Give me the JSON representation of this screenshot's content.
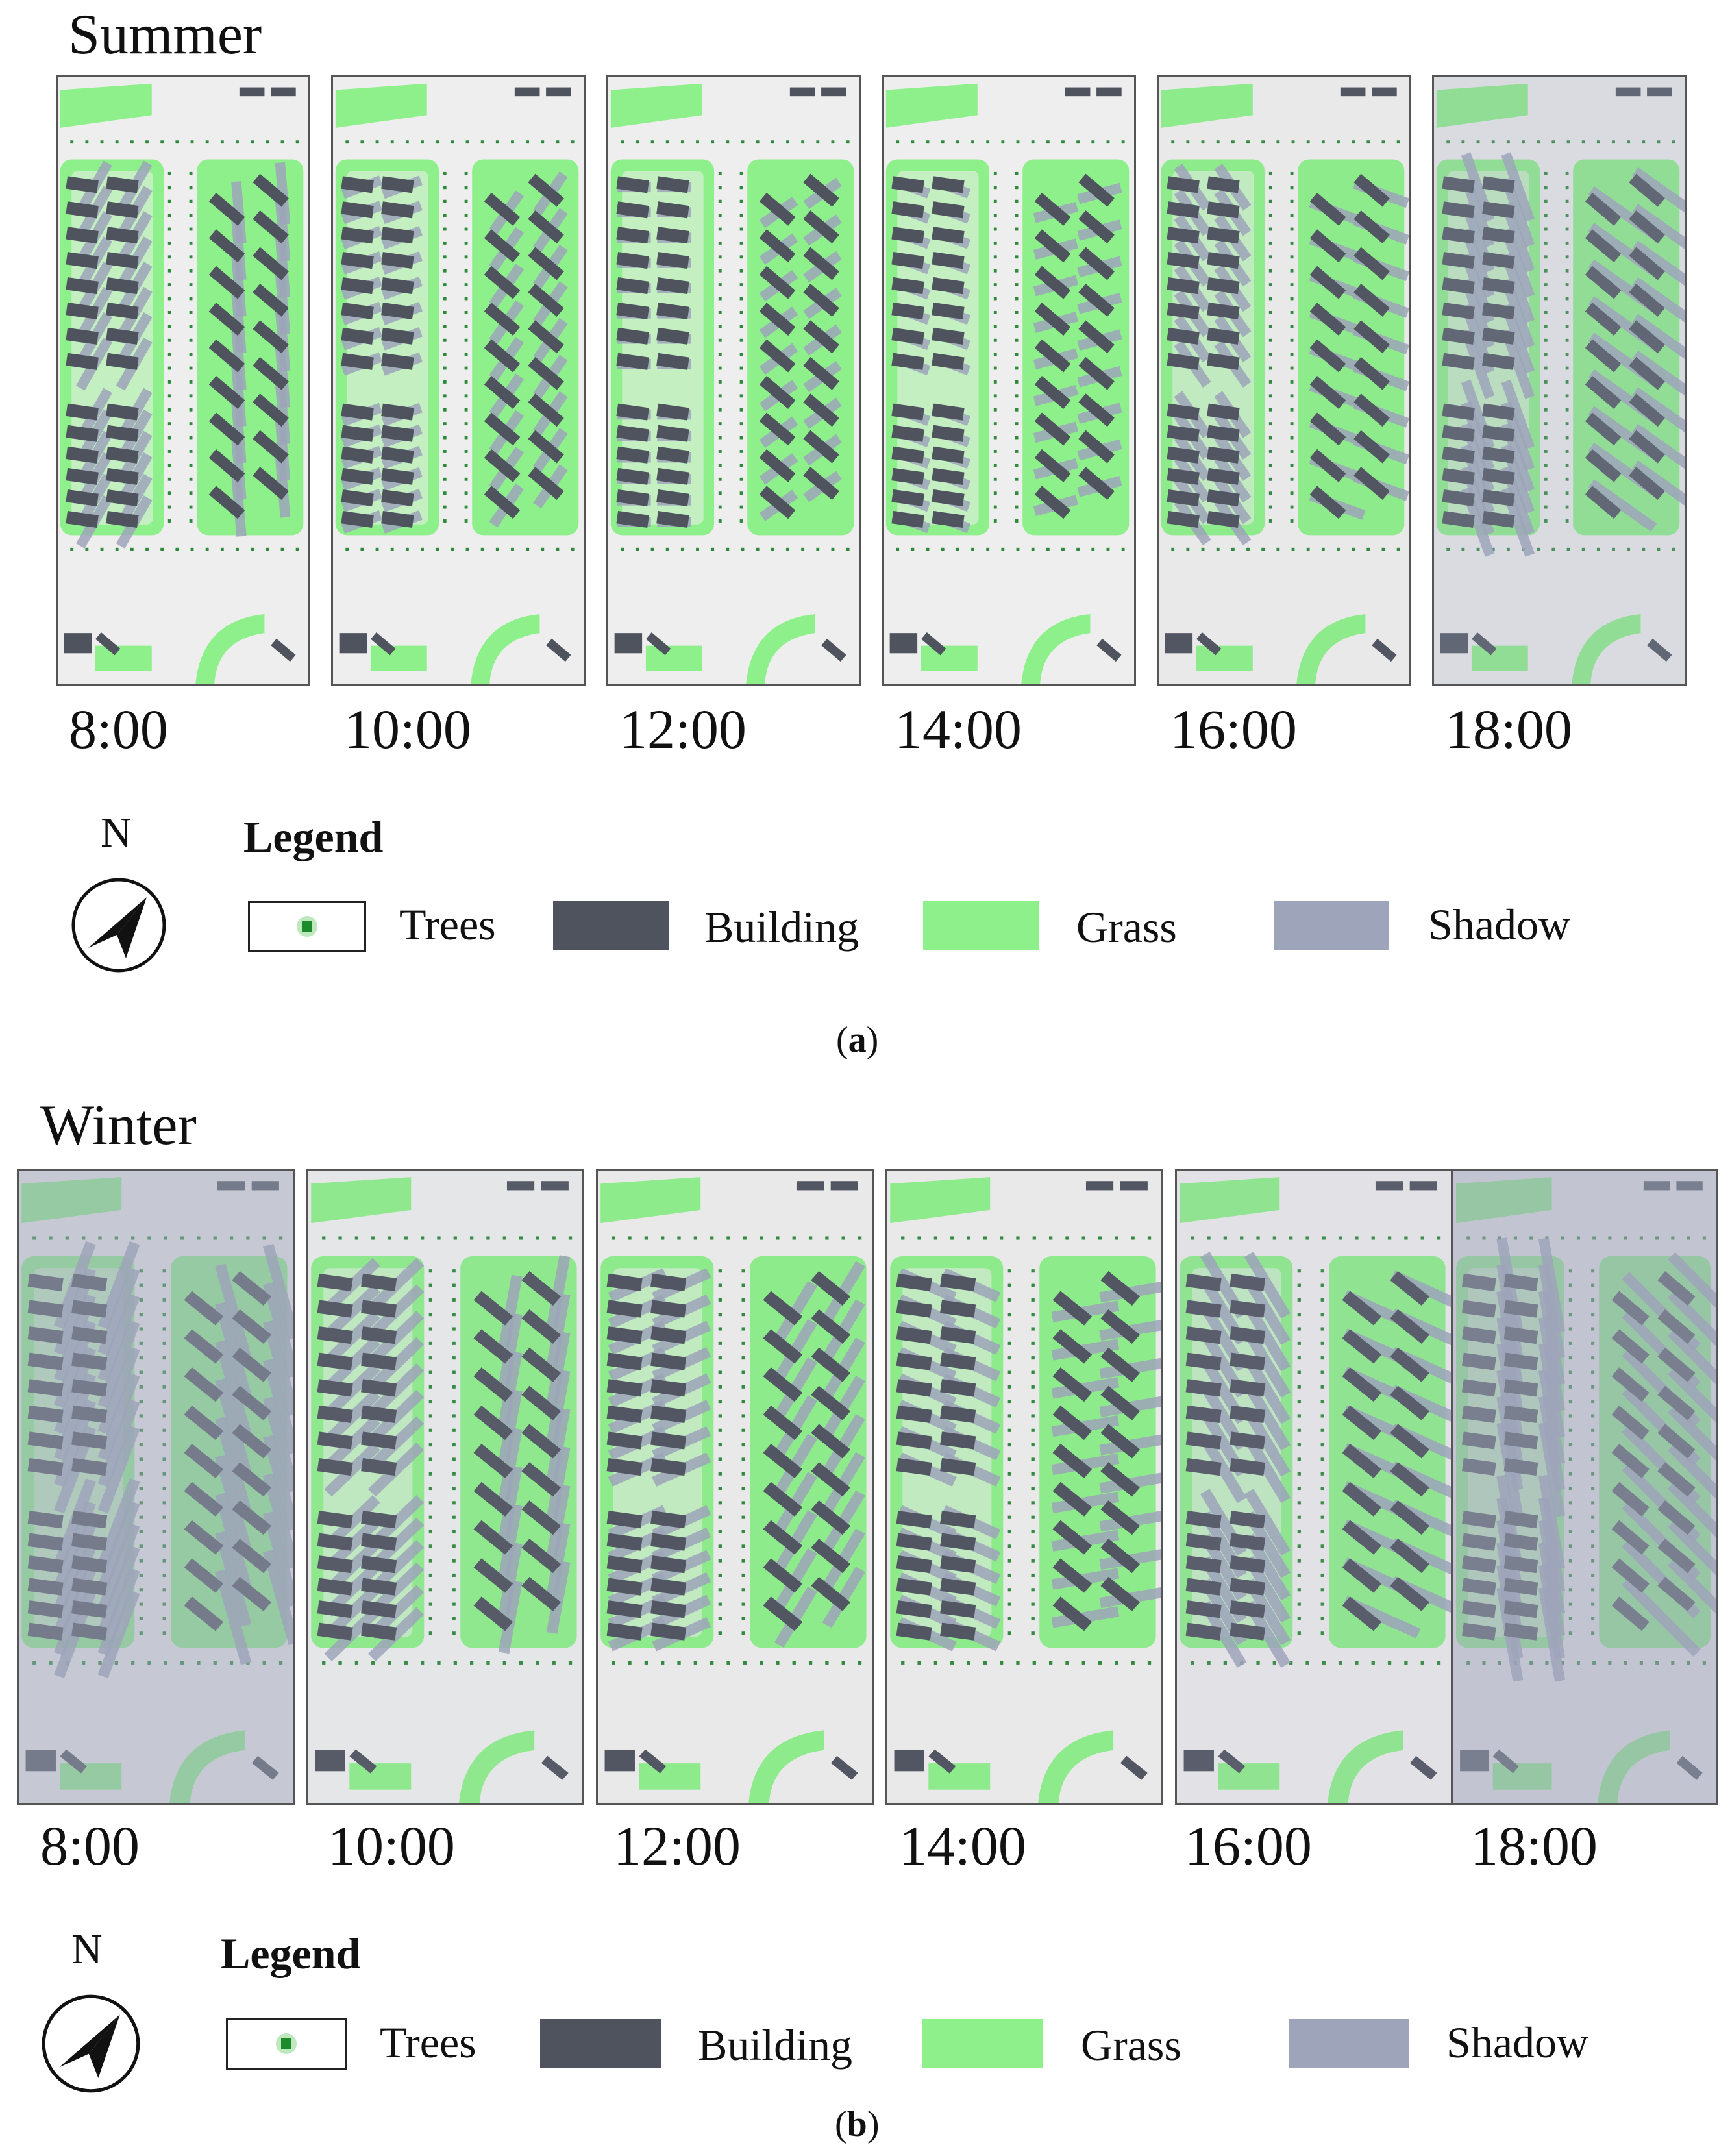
{
  "summer": {
    "title": "Summer",
    "times": [
      "8:00",
      "10:00",
      "12:00",
      "14:00",
      "16:00",
      "18:00"
    ],
    "caption_open": "(",
    "caption_letter": "a",
    "caption_close": ")"
  },
  "winter": {
    "title": "Winter",
    "times": [
      "8:00",
      "10:00",
      "12:00",
      "14:00",
      "16:00",
      "18:00"
    ],
    "caption_open": "(",
    "caption_letter": "b",
    "caption_close": ")"
  },
  "legend": {
    "title": "Legend",
    "north": "N",
    "items": [
      {
        "label": "Trees",
        "color": "#ffffff"
      },
      {
        "label": "Building",
        "color": "#4e535e"
      },
      {
        "label": "Grass",
        "color": "#8ef08a"
      },
      {
        "label": "Shadow",
        "color": "#9ea4ba"
      }
    ]
  },
  "colors": {
    "ground": "#eeeeee",
    "building": "#4e535e",
    "grass": "#8ef08a",
    "shadow": "#9ea4ba",
    "tree": "#2d8a3a"
  }
}
